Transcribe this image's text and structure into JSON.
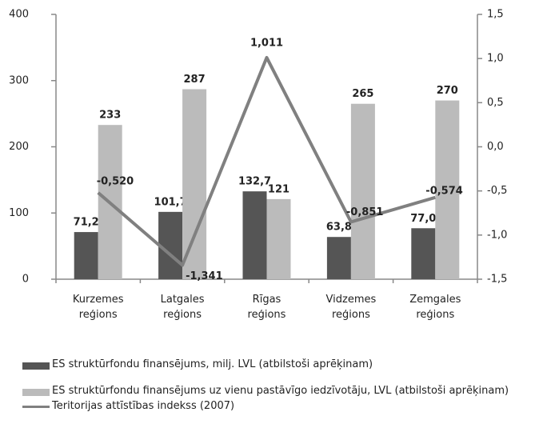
{
  "chart_data": {
    "type": "bar",
    "categories": [
      "Kurzemes reģions",
      "Latgales reģions",
      "Rīgas reģions",
      "Vidzemes reģions",
      "Zemgales reģions"
    ],
    "ylim": [
      0,
      400
    ],
    "yticks": [
      0,
      100,
      200,
      300,
      400
    ],
    "y2lim": [
      -1.5,
      1.5
    ],
    "y2ticks": [
      {
        "value": -1.5,
        "label": "-1,5"
      },
      {
        "value": -1.0,
        "label": "-1,0"
      },
      {
        "value": -0.5,
        "label": "-0,5"
      },
      {
        "value": 0.0,
        "label": "0,0"
      },
      {
        "value": 0.5,
        "label": "0,5"
      },
      {
        "value": 1.0,
        "label": "1,0"
      },
      {
        "value": 1.5,
        "label": "1,5"
      }
    ],
    "grid": false,
    "series": [
      {
        "name": "ES struktūrfondu finansējums, milj. LVL (atbilstoši aprēķinam)",
        "type": "bar",
        "color": "#555555",
        "values": [
          71.2,
          101.7,
          132.7,
          63.8,
          77.0
        ],
        "value_labels": [
          "71,2",
          "101,7",
          "132,7",
          "63,8",
          "77,0"
        ]
      },
      {
        "name": "ES struktūrfondu finansējums uz vienu pastāvīgo iedzīvotāju, LVL (atbilstoši aprēķinam)",
        "type": "bar",
        "color": "#bbbbbb",
        "values": [
          233,
          287,
          121,
          265,
          270
        ]
      },
      {
        "name": "Teritorijas attīstības indekss (2007)",
        "type": "line",
        "color": "#808080",
        "axis": "y2",
        "values": [
          -0.52,
          -1.341,
          1.011,
          -0.851,
          -0.574
        ],
        "value_labels": [
          "-0,520",
          "-1,341",
          "1,011",
          "-0,851",
          "-0,574"
        ]
      }
    ]
  }
}
